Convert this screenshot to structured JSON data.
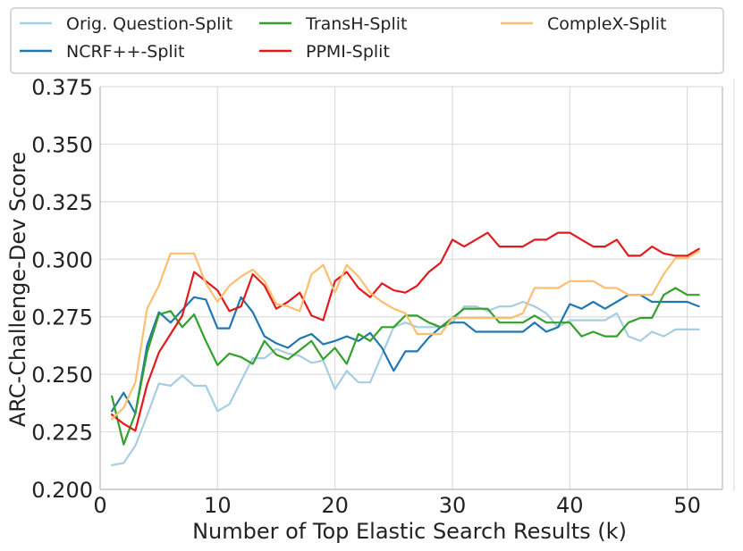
{
  "chart_data": {
    "type": "line",
    "xlabel": "Number of Top Elastic Search Results (k)",
    "ylabel": "ARC-Challenge-Dev Score",
    "xlim": [
      0,
      53
    ],
    "ylim": [
      0.2,
      0.375
    ],
    "xticks": [
      0,
      10,
      20,
      30,
      40,
      50
    ],
    "yticks": [
      0.2,
      0.225,
      0.25,
      0.275,
      0.3,
      0.325,
      0.35,
      0.375
    ],
    "xtick_labels": [
      "0",
      "10",
      "20",
      "30",
      "40",
      "50"
    ],
    "ytick_labels": [
      "0.200",
      "0.225",
      "0.250",
      "0.275",
      "0.300",
      "0.325",
      "0.350",
      "0.375"
    ],
    "grid": true,
    "legend_position": "top",
    "x": [
      1,
      2,
      3,
      4,
      5,
      6,
      7,
      8,
      9,
      10,
      11,
      12,
      13,
      14,
      15,
      16,
      17,
      18,
      19,
      20,
      21,
      22,
      23,
      24,
      25,
      26,
      27,
      28,
      29,
      30,
      31,
      32,
      33,
      34,
      35,
      36,
      37,
      38,
      39,
      40,
      41,
      42,
      43,
      44,
      45,
      46,
      47,
      48,
      49,
      50,
      51
    ],
    "series": [
      {
        "name": "Orig. Question-Split",
        "color": "#a6cee3",
        "values": [
          0.2105,
          0.2115,
          0.219,
          0.232,
          0.246,
          0.245,
          0.2495,
          0.245,
          0.245,
          0.234,
          0.237,
          0.247,
          0.257,
          0.257,
          0.261,
          0.259,
          0.258,
          0.255,
          0.256,
          0.2435,
          0.2515,
          0.2465,
          0.2465,
          0.2585,
          0.2705,
          0.2725,
          0.2705,
          0.2705,
          0.2705,
          0.2725,
          0.2795,
          0.2795,
          0.2775,
          0.2795,
          0.2795,
          0.2815,
          0.2795,
          0.2765,
          0.2705,
          0.2735,
          0.2735,
          0.2735,
          0.2735,
          0.2765,
          0.2665,
          0.2645,
          0.2685,
          0.2665,
          0.2695,
          0.2695,
          0.2695
        ]
      },
      {
        "name": "NCRF++-Split",
        "color": "#1f78b4",
        "values": [
          0.234,
          0.242,
          0.233,
          0.2625,
          0.277,
          0.2725,
          0.278,
          0.2835,
          0.2825,
          0.27,
          0.27,
          0.2835,
          0.277,
          0.2665,
          0.2635,
          0.2615,
          0.2655,
          0.2675,
          0.263,
          0.2645,
          0.2665,
          0.2645,
          0.268,
          0.2615,
          0.2515,
          0.26,
          0.26,
          0.266,
          0.2705,
          0.2725,
          0.2725,
          0.2685,
          0.2685,
          0.2685,
          0.2685,
          0.2685,
          0.2725,
          0.2685,
          0.2705,
          0.2805,
          0.2785,
          0.2815,
          0.2785,
          0.2815,
          0.2845,
          0.2845,
          0.2815,
          0.2815,
          0.2815,
          0.2815,
          0.2795
        ]
      },
      {
        "name": "TransH-Split",
        "color": "#33a02c",
        "values": [
          0.2405,
          0.2195,
          0.233,
          0.2595,
          0.276,
          0.2775,
          0.2705,
          0.276,
          0.2645,
          0.254,
          0.259,
          0.2575,
          0.2545,
          0.2645,
          0.2585,
          0.2565,
          0.2605,
          0.2645,
          0.2565,
          0.2615,
          0.2545,
          0.2675,
          0.2645,
          0.2705,
          0.2705,
          0.2755,
          0.2755,
          0.2725,
          0.2705,
          0.2745,
          0.2785,
          0.2785,
          0.2785,
          0.2725,
          0.2725,
          0.2725,
          0.2755,
          0.2725,
          0.2725,
          0.2725,
          0.2665,
          0.2685,
          0.2665,
          0.2665,
          0.2725,
          0.2745,
          0.2745,
          0.2845,
          0.2875,
          0.2845,
          0.2845
        ]
      },
      {
        "name": "PPMI-Split",
        "color": "#e31a1c",
        "values": [
          0.2325,
          0.2285,
          0.2255,
          0.2455,
          0.2595,
          0.2675,
          0.2755,
          0.2945,
          0.2905,
          0.2865,
          0.2775,
          0.2795,
          0.2935,
          0.2885,
          0.2785,
          0.2815,
          0.2855,
          0.2755,
          0.2735,
          0.2905,
          0.2945,
          0.2875,
          0.2835,
          0.2895,
          0.2865,
          0.2855,
          0.2885,
          0.2945,
          0.2985,
          0.3085,
          0.3055,
          0.3085,
          0.3115,
          0.3055,
          0.3055,
          0.3055,
          0.3085,
          0.3085,
          0.3115,
          0.3115,
          0.3085,
          0.3055,
          0.3055,
          0.3085,
          0.3015,
          0.3015,
          0.3055,
          0.3025,
          0.3015,
          0.3015,
          0.3045
        ]
      },
      {
        "name": "CompleX-Split",
        "color": "#fdbf6f",
        "values": [
          0.2305,
          0.2355,
          0.2465,
          0.2785,
          0.2885,
          0.3025,
          0.3025,
          0.3025,
          0.2895,
          0.2815,
          0.2885,
          0.2925,
          0.2955,
          0.2905,
          0.2805,
          0.2795,
          0.2775,
          0.2935,
          0.2975,
          0.2855,
          0.2975,
          0.2925,
          0.2855,
          0.2815,
          0.2785,
          0.2765,
          0.2675,
          0.2675,
          0.2675,
          0.2745,
          0.2745,
          0.2745,
          0.2745,
          0.2745,
          0.2745,
          0.2765,
          0.2875,
          0.2875,
          0.2875,
          0.2905,
          0.2905,
          0.2905,
          0.2875,
          0.2875,
          0.2845,
          0.2845,
          0.2845,
          0.2935,
          0.3005,
          0.3005,
          0.3035
        ]
      }
    ]
  }
}
